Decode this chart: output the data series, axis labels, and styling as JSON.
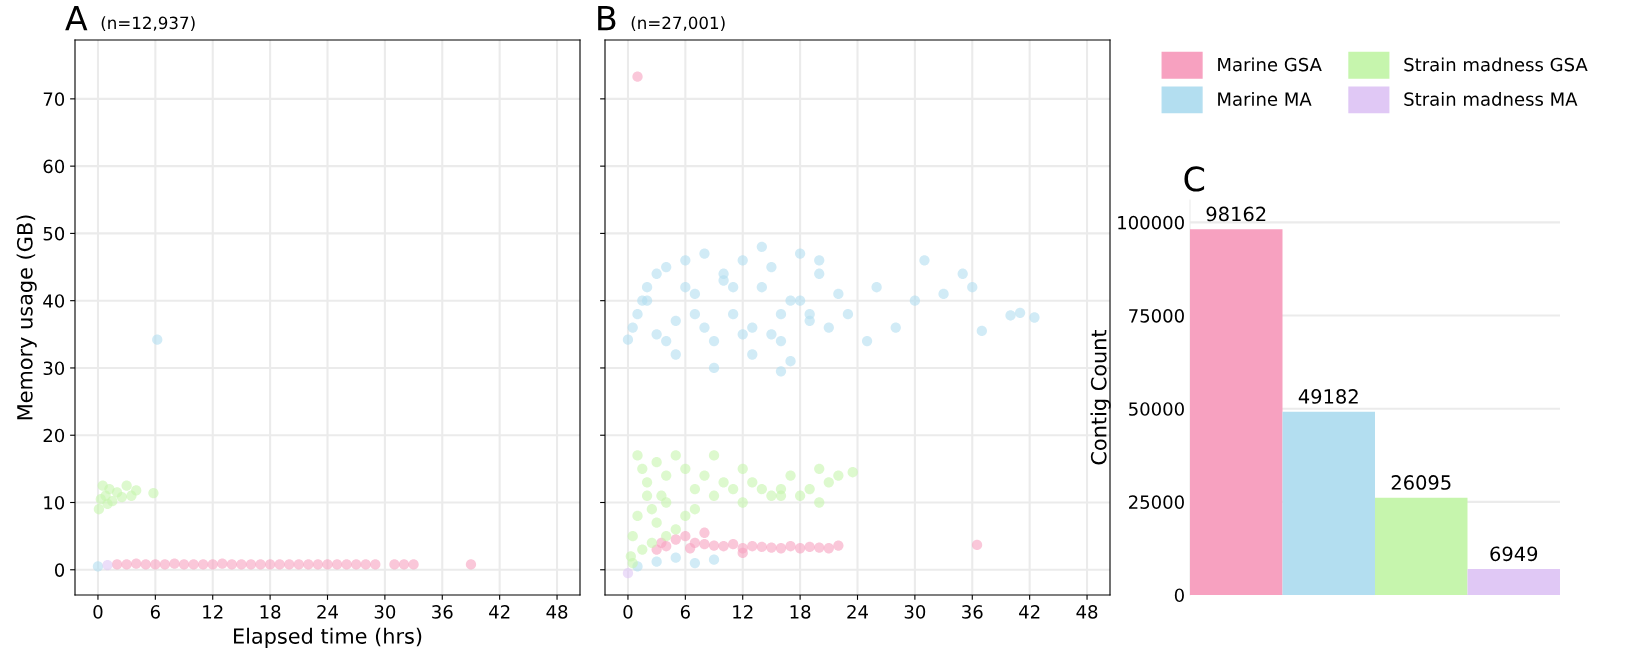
{
  "chart_data": [
    {
      "type": "scatter",
      "title": "(n=12,937)",
      "annotations": [
        "A"
      ],
      "xlabel": "Elapsed time (hrs)",
      "ylabel": "Memory usage (GB)",
      "xlim": [
        -2.4,
        50.4
      ],
      "ylim": [
        -3.75,
        78.75
      ],
      "xticks": [
        0,
        6,
        12,
        18,
        24,
        30,
        36,
        42,
        48
      ],
      "yticks": [
        0,
        10,
        20,
        30,
        40,
        50,
        60,
        70
      ],
      "grid": true,
      "marker": "circle",
      "series": [
        {
          "color": "#f7a1c0",
          "x": [
            2,
            3,
            4,
            5,
            6,
            7,
            8,
            9,
            10,
            11,
            12,
            13,
            14,
            15,
            16,
            17,
            18,
            19,
            20,
            21,
            22,
            23,
            24,
            25,
            26,
            27,
            28,
            29,
            31,
            32,
            33,
            39
          ],
          "values": [
            0.8,
            0.8,
            0.9,
            0.8,
            0.8,
            0.8,
            0.9,
            0.8,
            0.8,
            0.8,
            0.8,
            0.9,
            0.8,
            0.8,
            0.8,
            0.8,
            0.8,
            0.8,
            0.8,
            0.8,
            0.8,
            0.8,
            0.8,
            0.8,
            0.8,
            0.8,
            0.8,
            0.8,
            0.8,
            0.8,
            0.8,
            0.8
          ]
        },
        {
          "color": "#b3def0",
          "x": [
            0,
            6.2
          ],
          "values": [
            0.5,
            34.2
          ]
        },
        {
          "color": "#c6f5ad",
          "x": [
            0.1,
            0.3,
            0.5,
            0.8,
            1,
            1.2,
            1.5,
            2,
            2.5,
            3,
            3.5,
            4,
            5.8
          ],
          "values": [
            9,
            10.5,
            12.5,
            11,
            9.8,
            12,
            10.2,
            11.5,
            10.8,
            12.5,
            11,
            11.8,
            11.4
          ]
        },
        {
          "color": "#e0c8f5",
          "x": [
            1
          ],
          "values": [
            0.7
          ]
        }
      ]
    },
    {
      "type": "scatter",
      "title": "(n=27,001)",
      "annotations": [
        "B"
      ],
      "xlim": [
        -2.4,
        50.4
      ],
      "ylim": [
        -3.75,
        78.75
      ],
      "xticks": [
        0,
        6,
        12,
        18,
        24,
        30,
        36,
        42,
        48
      ],
      "yticks": [
        0,
        10,
        20,
        30,
        40,
        50,
        60,
        70
      ],
      "tick_labels": "x",
      "grid": true,
      "marker": "circle",
      "series": [
        {
          "color": "#f7a1c0",
          "x": [
            1,
            3,
            3.5,
            4,
            5,
            6,
            6.5,
            7,
            8,
            9,
            10,
            11,
            12,
            13,
            14,
            15,
            16,
            17,
            18,
            19,
            20,
            21,
            22,
            36.5,
            8,
            12
          ],
          "values": [
            73.3,
            3,
            4,
            3.5,
            4.5,
            5,
            3.2,
            4,
            3.8,
            3.6,
            3.5,
            3.8,
            3.2,
            3.5,
            3.4,
            3.3,
            3.2,
            3.5,
            3.2,
            3.4,
            3.3,
            3.2,
            3.6,
            3.7,
            5.5,
            2.5
          ]
        },
        {
          "color": "#b3def0",
          "x": [
            0,
            0.5,
            1,
            1.5,
            2,
            3,
            4,
            5,
            6,
            7,
            8,
            9,
            10,
            11,
            12,
            13,
            14,
            15,
            16,
            17,
            18,
            19,
            20,
            21,
            22,
            2,
            4,
            6,
            8,
            10,
            12,
            14,
            16,
            18,
            20,
            3,
            7,
            11,
            15,
            19,
            9,
            13,
            17,
            23,
            25,
            26,
            28,
            30,
            31,
            33,
            35,
            36,
            37,
            40,
            41,
            42.5,
            16,
            5,
            1,
            3,
            5,
            7,
            9
          ],
          "values": [
            34.2,
            36,
            38,
            40,
            42,
            35,
            45,
            37,
            46,
            41,
            47,
            34,
            44,
            38,
            46,
            36,
            42,
            45,
            34,
            40,
            47,
            38,
            44,
            36,
            41,
            40,
            34,
            42,
            36,
            43,
            35,
            48,
            38,
            40,
            46,
            44,
            38,
            42,
            35,
            37,
            30,
            32,
            31,
            38,
            34,
            42,
            36,
            40,
            46,
            41,
            44,
            42,
            35.5,
            37.8,
            38.2,
            37.5,
            29.5,
            32,
            0.5,
            1.2,
            1.8,
            1,
            1.5
          ]
        },
        {
          "color": "#c6f5ad",
          "x": [
            0.3,
            0.5,
            1,
            1.5,
            2,
            2.5,
            3,
            3.5,
            4,
            5,
            6,
            7,
            8,
            9,
            10,
            11,
            12,
            13,
            14,
            15,
            16,
            17,
            18,
            19,
            20,
            21,
            22,
            23.5,
            1,
            2,
            3,
            4,
            5,
            6,
            7,
            9,
            1.5,
            2.5,
            4,
            0.5,
            12,
            16,
            20
          ],
          "values": [
            2,
            5,
            17,
            15,
            13,
            9,
            16,
            11,
            14,
            17,
            15,
            12,
            14,
            17,
            13,
            12,
            15,
            13,
            12,
            11,
            12,
            14,
            11,
            12,
            15,
            13,
            14,
            14.5,
            8,
            11,
            7,
            10,
            6,
            8,
            9,
            11,
            3,
            4,
            5,
            1,
            10,
            11,
            10
          ]
        },
        {
          "color": "#e0c8f5",
          "x": [
            0
          ],
          "values": [
            -0.5
          ]
        }
      ]
    },
    {
      "type": "bar",
      "annotations": [
        "C"
      ],
      "ylabel": "Contig Count",
      "categories": [
        null
      ],
      "ylim": [
        0,
        106000
      ],
      "yticks": [
        0,
        25000,
        50000,
        75000,
        100000
      ],
      "grid": "y",
      "data_labels": true,
      "legend": "top",
      "series": [
        {
          "name": "Marine GSA",
          "color": "#f7a1c0",
          "values": [
            98162
          ]
        },
        {
          "name": "Marine MA",
          "color": "#b3def0",
          "values": [
            49182
          ]
        },
        {
          "name": "Strain madness GSA",
          "color": "#c6f5ad",
          "values": [
            26095
          ]
        },
        {
          "name": "Strain madness MA",
          "color": "#e0c8f5",
          "values": [
            6949
          ]
        }
      ]
    }
  ]
}
